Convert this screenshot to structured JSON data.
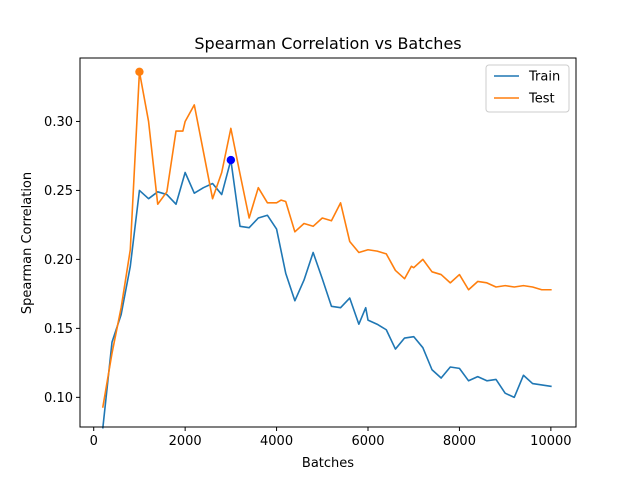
{
  "chart_data": {
    "type": "line",
    "title": "Spearman Correlation vs Batches",
    "xlabel": "Batches",
    "ylabel": "Spearman Correlation",
    "xlim": [
      -300,
      10550
    ],
    "ylim": [
      0.0785,
      0.346
    ],
    "x_ticks": [
      0,
      2000,
      4000,
      6000,
      8000,
      10000
    ],
    "x_tick_labels": [
      "0",
      "2000",
      "4000",
      "6000",
      "8000",
      "10000"
    ],
    "y_ticks": [
      0.1,
      0.15,
      0.2,
      0.25,
      0.3
    ],
    "y_tick_labels": [
      "0.10",
      "0.15",
      "0.20",
      "0.25",
      "0.30"
    ],
    "grid": false,
    "legend_position": "top-right",
    "series": [
      {
        "name": "Train",
        "color": "#1f77b4",
        "x": [
          200,
          400,
          600,
          800,
          1000,
          1200,
          1400,
          1600,
          1800,
          2000,
          2200,
          2400,
          2600,
          2800,
          3000,
          3200,
          3400,
          3600,
          3800,
          4000,
          4200,
          4400,
          4600,
          4800,
          5000,
          5200,
          5400,
          5600,
          5800,
          5950,
          6000,
          6200,
          6400,
          6600,
          6800,
          7000,
          7200,
          7400,
          7600,
          7800,
          8000,
          8200,
          8400,
          8600,
          8800,
          9000,
          9200,
          9400,
          9600,
          9800,
          10000
        ],
        "y": [
          0.078,
          0.14,
          0.16,
          0.195,
          0.25,
          0.244,
          0.249,
          0.247,
          0.24,
          0.263,
          0.248,
          0.252,
          0.255,
          0.247,
          0.272,
          0.224,
          0.223,
          0.23,
          0.232,
          0.222,
          0.19,
          0.17,
          0.185,
          0.205,
          0.186,
          0.166,
          0.165,
          0.172,
          0.153,
          0.165,
          0.156,
          0.153,
          0.149,
          0.135,
          0.143,
          0.144,
          0.136,
          0.12,
          0.114,
          0.122,
          0.121,
          0.112,
          0.115,
          0.112,
          0.113,
          0.103,
          0.1,
          0.116,
          0.11,
          0.109,
          0.108
        ]
      },
      {
        "name": "Test",
        "color": "#ff7f0e",
        "x": [
          200,
          400,
          600,
          800,
          1000,
          1200,
          1400,
          1600,
          1800,
          1950,
          2000,
          2200,
          2400,
          2600,
          2800,
          3000,
          3200,
          3400,
          3600,
          3800,
          4000,
          4100,
          4200,
          4400,
          4600,
          4800,
          5000,
          5200,
          5400,
          5600,
          5800,
          6000,
          6200,
          6400,
          6600,
          6800,
          6950,
          7000,
          7200,
          7400,
          7600,
          7800,
          8000,
          8200,
          8400,
          8600,
          8800,
          9000,
          9200,
          9400,
          9600,
          9800,
          10000
        ],
        "y": [
          0.093,
          0.132,
          0.165,
          0.207,
          0.336,
          0.3,
          0.24,
          0.249,
          0.293,
          0.293,
          0.3,
          0.312,
          0.278,
          0.244,
          0.263,
          0.295,
          0.262,
          0.23,
          0.252,
          0.241,
          0.241,
          0.243,
          0.242,
          0.22,
          0.226,
          0.224,
          0.23,
          0.228,
          0.241,
          0.213,
          0.205,
          0.207,
          0.206,
          0.204,
          0.192,
          0.186,
          0.195,
          0.194,
          0.2,
          0.191,
          0.189,
          0.183,
          0.189,
          0.178,
          0.184,
          0.183,
          0.18,
          0.181,
          0.18,
          0.181,
          0.18,
          0.178,
          0.178
        ]
      }
    ],
    "highlight_points": [
      {
        "series": "Test",
        "x": 1000,
        "y": 0.336,
        "color": "#ff7f0e"
      },
      {
        "series": "Train",
        "x": 3000,
        "y": 0.272,
        "color": "#0000ff"
      }
    ]
  }
}
